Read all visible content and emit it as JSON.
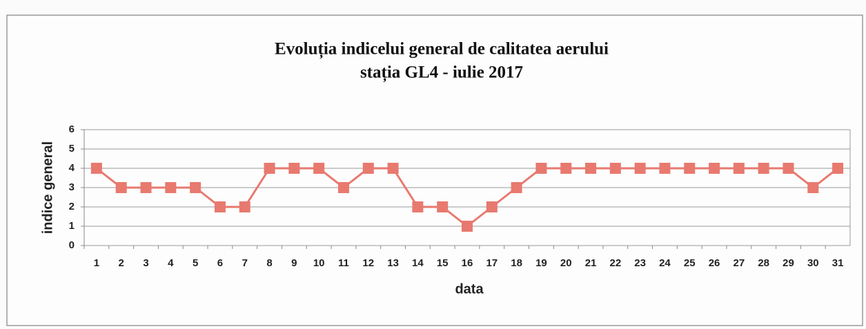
{
  "chart_data": {
    "type": "line",
    "title": "Evoluția indicelui general de calitatea aerului",
    "subtitle": "stația GL4 - iulie 2017",
    "x_label": "data",
    "y_label": "indice general",
    "categories": [
      "1",
      "2",
      "3",
      "4",
      "5",
      "6",
      "7",
      "8",
      "9",
      "10",
      "11",
      "12",
      "13",
      "14",
      "15",
      "16",
      "17",
      "18",
      "19",
      "20",
      "21",
      "22",
      "23",
      "24",
      "25",
      "26",
      "27",
      "28",
      "29",
      "30",
      "31"
    ],
    "series": [
      {
        "name": "indice general",
        "color": "#e8796f",
        "values": [
          4,
          3,
          3,
          3,
          3,
          2,
          2,
          4,
          4,
          4,
          3,
          4,
          4,
          2,
          2,
          1,
          2,
          3,
          4,
          4,
          4,
          4,
          4,
          4,
          4,
          4,
          4,
          4,
          4,
          3,
          4
        ]
      }
    ],
    "ylim": [
      0,
      6
    ],
    "yticks": [
      0,
      1,
      2,
      3,
      4,
      5,
      6
    ],
    "grid": true
  }
}
